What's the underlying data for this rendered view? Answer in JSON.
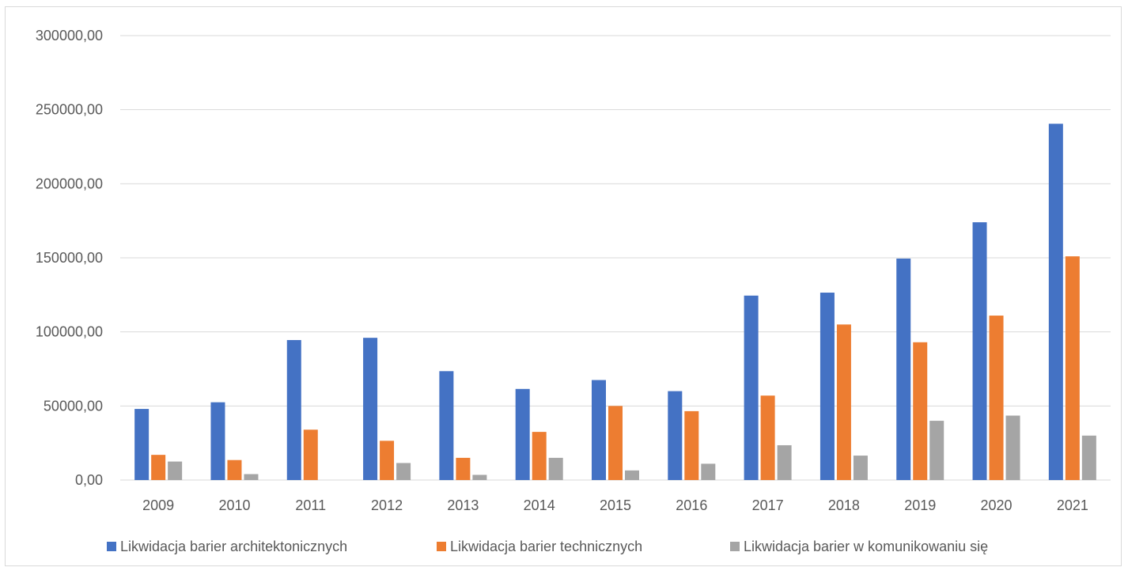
{
  "chart_data": {
    "type": "bar",
    "title": "",
    "xlabel": "",
    "ylabel": "",
    "ylim": [
      0,
      300000
    ],
    "yticks": [
      "0,00",
      "50000,00",
      "100000,00",
      "150000,00",
      "200000,00",
      "250000,00",
      "300000,00"
    ],
    "ytick_values": [
      0,
      50000,
      100000,
      150000,
      200000,
      250000,
      300000
    ],
    "grid": true,
    "legend_position": "bottom",
    "categories": [
      "2009",
      "2010",
      "2011",
      "2012",
      "2013",
      "2014",
      "2015",
      "2016",
      "2017",
      "2018",
      "2019",
      "2020",
      "2021"
    ],
    "series": [
      {
        "name": "Likwidacja barier architektonicznych",
        "color": "#4472c4",
        "values": [
          48000,
          52500,
          94500,
          96000,
          73500,
          61500,
          67500,
          60000,
          124500,
          126500,
          149500,
          174000,
          240500
        ]
      },
      {
        "name": "Likwidacja barier technicznych",
        "color": "#ed7d31",
        "values": [
          17000,
          13500,
          34000,
          26500,
          15000,
          32500,
          50000,
          46500,
          57000,
          105000,
          93000,
          111000,
          151000
        ]
      },
      {
        "name": "Likwidacja barier w komunikowaniu się",
        "color": "#a5a5a5",
        "values": [
          12500,
          4000,
          0,
          11500,
          3500,
          15000,
          6500,
          11000,
          23500,
          16500,
          40000,
          43500,
          30000
        ]
      }
    ]
  }
}
